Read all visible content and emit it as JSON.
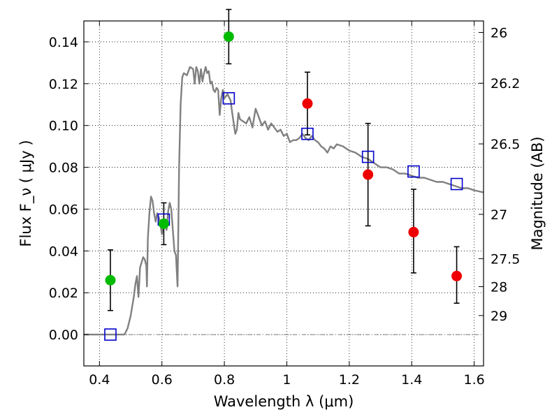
{
  "chart_data": {
    "type": "scatter",
    "xlabel": "Wavelength  λ (μm)",
    "ylabel": "Flux  F_ν  ( μJy )",
    "ylabel_right": "Magnitude (AB)",
    "xlim": [
      0.35,
      1.63
    ],
    "ylim": [
      -0.015,
      0.15
    ],
    "grid": true,
    "x_ticks": [
      0.4,
      0.6,
      0.8,
      1.0,
      1.2,
      1.4,
      1.6
    ],
    "x_tick_labels": [
      "0.4",
      "0.6",
      "0.8",
      "1",
      "1.2",
      "1.4",
      "1.6"
    ],
    "y_ticks": [
      0.0,
      0.02,
      0.04,
      0.06,
      0.08,
      0.1,
      0.12,
      0.14
    ],
    "y_tick_labels": [
      "0.00",
      "0.02",
      "0.04",
      "0.06",
      "0.08",
      "0.10",
      "0.12",
      "0.14"
    ],
    "right_ticks": [
      {
        "label": "26",
        "flux": 0.1445
      },
      {
        "label": "26.2",
        "flux": 0.1202
      },
      {
        "label": "26.5",
        "flux": 0.0912
      },
      {
        "label": "27",
        "flux": 0.0575
      },
      {
        "label": "27.5",
        "flux": 0.0363
      },
      {
        "label": "28",
        "flux": 0.0229
      },
      {
        "label": "29",
        "flux": 0.0091
      }
    ],
    "colors": {
      "model": "#808080",
      "green": "#00bb00",
      "red": "#ee0000",
      "model_points": "#0000cc",
      "errorbar": "#000000"
    },
    "series": [
      {
        "role": "model_spectrum",
        "style": "line",
        "x": [
          0.35,
          0.48,
          0.49,
          0.5,
          0.51,
          0.515,
          0.52,
          0.525,
          0.53,
          0.54,
          0.545,
          0.55,
          0.552,
          0.555,
          0.56,
          0.565,
          0.57,
          0.575,
          0.58,
          0.585,
          0.59,
          0.595,
          0.6,
          0.605,
          0.61,
          0.615,
          0.62,
          0.625,
          0.63,
          0.635,
          0.64,
          0.645,
          0.65,
          0.652,
          0.655,
          0.66,
          0.665,
          0.67,
          0.68,
          0.69,
          0.7,
          0.705,
          0.71,
          0.715,
          0.72,
          0.725,
          0.73,
          0.735,
          0.74,
          0.745,
          0.75,
          0.755,
          0.76,
          0.765,
          0.77,
          0.775,
          0.78,
          0.785,
          0.79,
          0.795,
          0.8,
          0.81,
          0.82,
          0.825,
          0.83,
          0.835,
          0.84,
          0.845,
          0.85,
          0.86,
          0.87,
          0.88,
          0.89,
          0.9,
          0.91,
          0.92,
          0.93,
          0.94,
          0.95,
          0.96,
          0.97,
          0.98,
          0.99,
          1.0,
          1.01,
          1.02,
          1.03,
          1.04,
          1.05,
          1.06,
          1.07,
          1.08,
          1.09,
          1.1,
          1.11,
          1.12,
          1.13,
          1.14,
          1.15,
          1.16,
          1.18,
          1.2,
          1.22,
          1.24,
          1.26,
          1.28,
          1.3,
          1.32,
          1.34,
          1.36,
          1.38,
          1.4,
          1.42,
          1.44,
          1.46,
          1.48,
          1.5,
          1.52,
          1.54,
          1.56,
          1.58,
          1.6,
          1.63
        ],
        "values": [
          0.0,
          0.0,
          0.003,
          0.009,
          0.018,
          0.024,
          0.028,
          0.018,
          0.032,
          0.037,
          0.036,
          0.033,
          0.023,
          0.046,
          0.058,
          0.066,
          0.064,
          0.058,
          0.054,
          0.058,
          0.056,
          0.053,
          0.048,
          0.052,
          0.055,
          0.05,
          0.059,
          0.063,
          0.06,
          0.05,
          0.04,
          0.038,
          0.023,
          0.045,
          0.08,
          0.11,
          0.123,
          0.125,
          0.124,
          0.128,
          0.127,
          0.12,
          0.128,
          0.126,
          0.12,
          0.127,
          0.121,
          0.125,
          0.128,
          0.125,
          0.126,
          0.12,
          0.121,
          0.117,
          0.116,
          0.118,
          0.117,
          0.105,
          0.113,
          0.117,
          0.113,
          0.115,
          0.112,
          0.106,
          0.101,
          0.096,
          0.098,
          0.106,
          0.103,
          0.102,
          0.101,
          0.104,
          0.099,
          0.108,
          0.104,
          0.1,
          0.102,
          0.098,
          0.101,
          0.099,
          0.097,
          0.098,
          0.095,
          0.096,
          0.092,
          0.093,
          0.093,
          0.094,
          0.096,
          0.094,
          0.093,
          0.095,
          0.093,
          0.092,
          0.09,
          0.089,
          0.087,
          0.09,
          0.089,
          0.091,
          0.09,
          0.088,
          0.087,
          0.085,
          0.084,
          0.082,
          0.08,
          0.08,
          0.079,
          0.077,
          0.077,
          0.076,
          0.075,
          0.075,
          0.074,
          0.073,
          0.073,
          0.072,
          0.071,
          0.07,
          0.07,
          0.069,
          0.068
        ]
      },
      {
        "role": "model_photometry",
        "style": "open-square",
        "x": [
          0.435,
          0.606,
          0.814,
          1.066,
          1.26,
          1.406,
          1.544
        ],
        "values": [
          0.0,
          0.055,
          0.113,
          0.096,
          0.085,
          0.078,
          0.072
        ]
      },
      {
        "role": "observed_optical",
        "style": "filled-circle-green",
        "x": [
          0.435,
          0.606,
          0.814
        ],
        "values": [
          0.026,
          0.053,
          0.1425
        ],
        "yerr_low": [
          0.0145,
          0.01,
          0.013
        ],
        "yerr_high": [
          0.0145,
          0.01,
          0.013
        ]
      },
      {
        "role": "observed_nir",
        "style": "filled-circle-red",
        "x": [
          1.066,
          1.26,
          1.406,
          1.544
        ],
        "values": [
          0.1105,
          0.0765,
          0.049,
          0.028
        ],
        "yerr_low": [
          0.015,
          0.0245,
          0.0195,
          0.013
        ],
        "yerr_high": [
          0.015,
          0.0245,
          0.0205,
          0.014
        ]
      }
    ]
  }
}
